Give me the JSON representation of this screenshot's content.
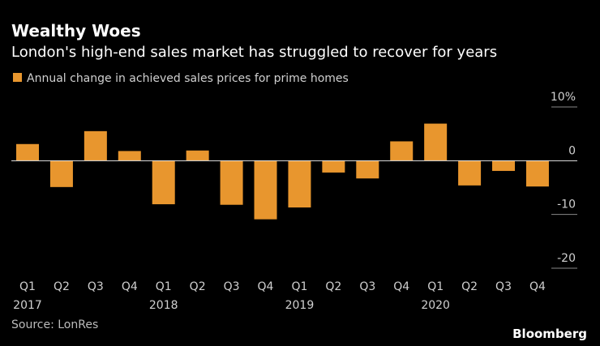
{
  "chart_data": {
    "type": "bar",
    "title": "Wealthy Woes",
    "subtitle": "London's high-end sales market has struggled to recover for years",
    "series": [
      {
        "name": "Annual change in achieved sales prices for prime homes",
        "color": "#e8962e",
        "values": [
          3.1,
          -4.9,
          5.5,
          1.8,
          -8.1,
          1.9,
          -8.2,
          -10.9,
          -8.7,
          -2.2,
          -3.3,
          3.6,
          6.9,
          -4.6,
          -1.9,
          -4.8
        ]
      }
    ],
    "categories": [
      "Q1",
      "Q2",
      "Q3",
      "Q4",
      "Q1",
      "Q2",
      "Q3",
      "Q4",
      "Q1",
      "Q2",
      "Q3",
      "Q4",
      "Q1",
      "Q2",
      "Q3",
      "Q4"
    ],
    "category_years": [
      "2017",
      null,
      null,
      null,
      "2018",
      null,
      null,
      null,
      "2019",
      null,
      null,
      null,
      "2020",
      null,
      null,
      null
    ],
    "ylim": [
      -20,
      10
    ],
    "yticks": [
      {
        "value": 10,
        "label": "10%"
      },
      0,
      -10,
      -20
    ],
    "source": "Source: LonRes",
    "brand": "Bloomberg"
  }
}
